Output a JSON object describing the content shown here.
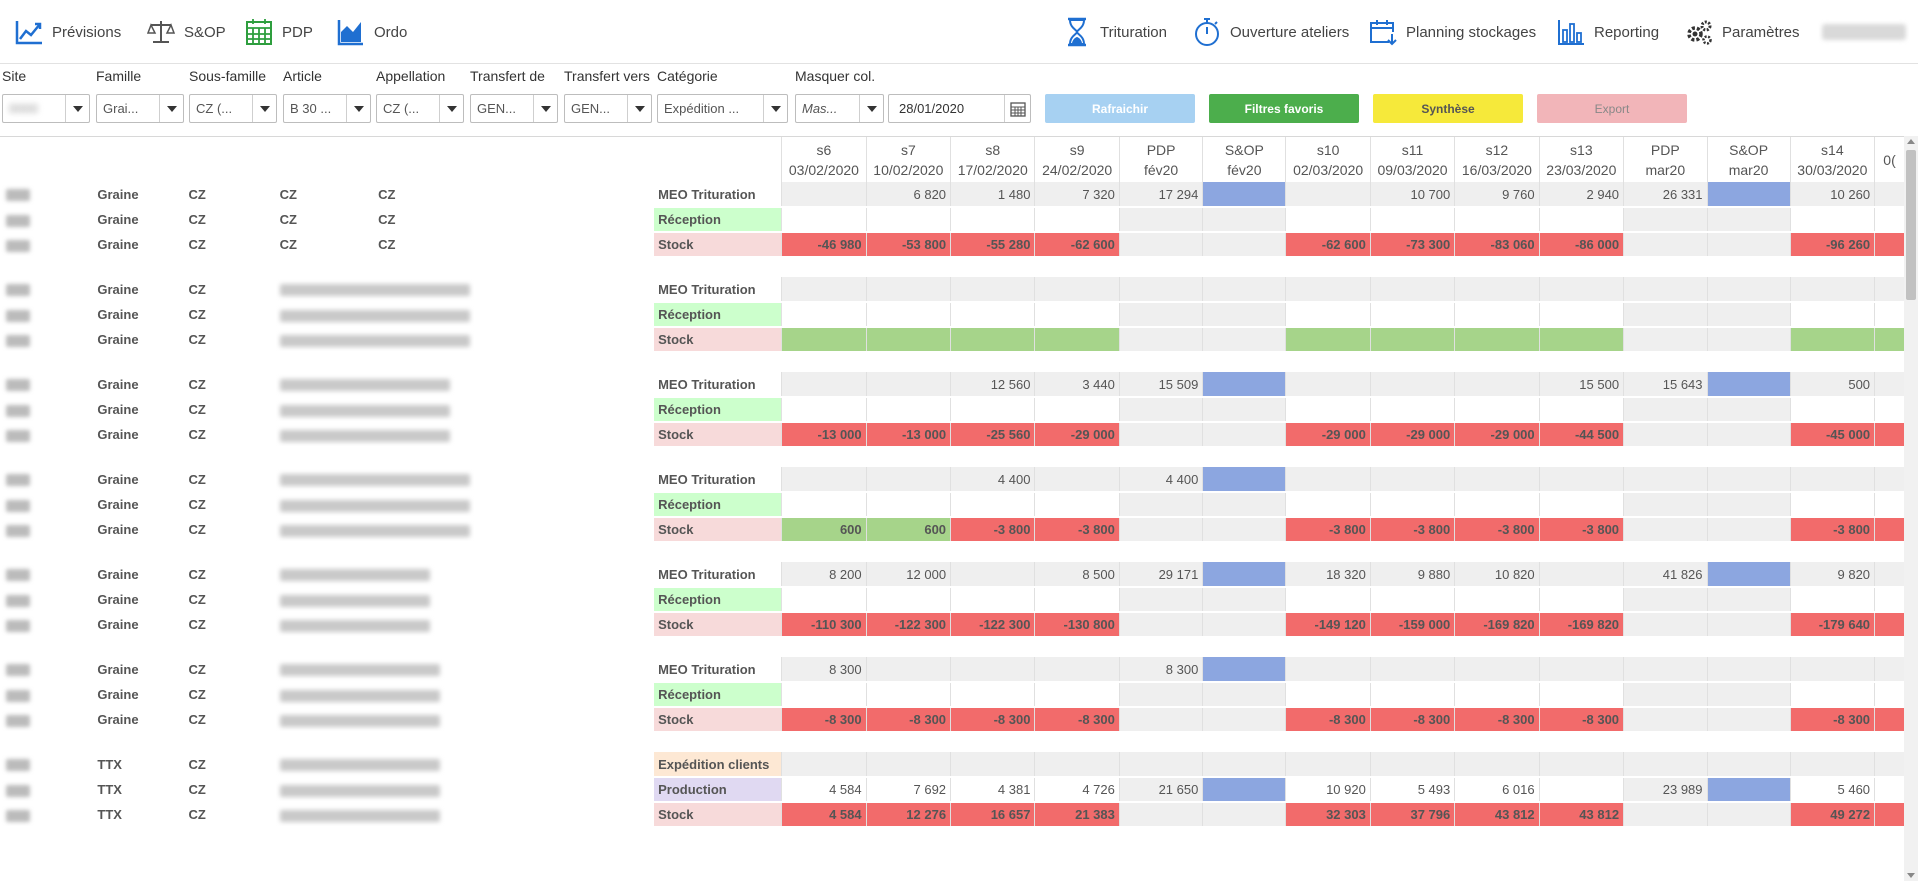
{
  "nav": {
    "left": [
      {
        "label": "Prévisions",
        "icon": "line-chart-icon"
      },
      {
        "label": "S&OP",
        "icon": "balance-scale-icon"
      },
      {
        "label": "PDP",
        "icon": "calendar-grid-icon"
      },
      {
        "label": "Ordo",
        "icon": "area-chart-icon"
      }
    ],
    "right": [
      {
        "label": "Trituration",
        "icon": "hourglass-icon"
      },
      {
        "label": "Ouverture ateliers",
        "icon": "stopwatch-icon"
      },
      {
        "label": "Planning stockages",
        "icon": "calendar-download-icon"
      },
      {
        "label": "Reporting",
        "icon": "bar-chart-icon"
      },
      {
        "label": "Paramètres",
        "icon": "gears-icon"
      }
    ]
  },
  "filters": {
    "labels": [
      "Site",
      "Famille",
      "Sous-famille",
      "Article",
      "Appellation",
      "Transfert de",
      "Transfert vers",
      "Catégorie",
      "Masquer col."
    ],
    "values": {
      "famille": "Grai...",
      "sous_famille": "CZ (...",
      "article": "B 30 ...",
      "appellation": "CZ (...",
      "transfert_de": "GEN...",
      "transfert_vers": "GEN...",
      "categorie": "Expédition ...",
      "masquer": "Mas..."
    },
    "date": "28/01/2020"
  },
  "buttons": {
    "refresh": "Rafraichir",
    "favorites": "Filtres favoris",
    "synthese": "Synthèse",
    "export": "Export"
  },
  "colors": {
    "refresh": "#a7d1f2",
    "favorites": "#4cae4c",
    "synthese": "#f6e93a",
    "export": "#f2b5b9",
    "red": "#f26b6b",
    "green": "#a6d48a",
    "blue": "#8ca6e0",
    "nav_icon": "#1f6fd1"
  },
  "columns": [
    {
      "l1": "s6",
      "l2": "03/02/2020"
    },
    {
      "l1": "s7",
      "l2": "10/02/2020"
    },
    {
      "l1": "s8",
      "l2": "17/02/2020"
    },
    {
      "l1": "s9",
      "l2": "24/02/2020"
    },
    {
      "l1": "PDP",
      "l2": "fév20"
    },
    {
      "l1": "S&OP",
      "l2": "fév20"
    },
    {
      "l1": "s10",
      "l2": "02/03/2020"
    },
    {
      "l1": "s11",
      "l2": "09/03/2020"
    },
    {
      "l1": "s12",
      "l2": "16/03/2020"
    },
    {
      "l1": "s13",
      "l2": "23/03/2020"
    },
    {
      "l1": "PDP",
      "l2": "mar20"
    },
    {
      "l1": "S&OP",
      "l2": "mar20"
    },
    {
      "l1": "s14",
      "l2": "30/03/2020"
    },
    {
      "l1": "",
      "l2": "0("
    }
  ],
  "groups": [
    {
      "famille": "Graine",
      "sous_famille": "CZ",
      "article": "CZ",
      "appellation": "CZ",
      "blur_article": false,
      "rows": [
        {
          "cat": "MEO Trituration",
          "kind": "meo",
          "vals": [
            "",
            "6 820",
            "1 480",
            "7 320",
            "17 294",
            "",
            "",
            "10 700",
            "9 760",
            "2 940",
            "26 331",
            "",
            "10 260",
            ""
          ],
          "cls": [
            "g",
            "g",
            "g",
            "g",
            "g",
            "blu",
            "g",
            "g",
            "g",
            "g",
            "g",
            "blu",
            "g",
            "g"
          ]
        },
        {
          "cat": "Réception",
          "kind": "rec",
          "vals": [
            "",
            "",
            "",
            "",
            "",
            "",
            "",
            "",
            "",
            "",
            "",
            "",
            "",
            ""
          ],
          "cls": [
            "w",
            "w",
            "w",
            "w",
            "g",
            "g",
            "w",
            "w",
            "w",
            "w",
            "g",
            "g",
            "w",
            "w"
          ]
        },
        {
          "cat": "Stock",
          "kind": "stk",
          "vals": [
            "-46 980",
            "-53 800",
            "-55 280",
            "-62 600",
            "",
            "",
            "-62 600",
            "-73 300",
            "-83 060",
            "-86 000",
            "",
            "",
            "-96 260",
            ""
          ],
          "cls": [
            "red",
            "red",
            "red",
            "red",
            "g",
            "g",
            "red",
            "red",
            "red",
            "red",
            "g",
            "g",
            "red",
            "red"
          ]
        }
      ]
    },
    {
      "famille": "Graine",
      "sous_famille": "CZ",
      "article": "",
      "appellation": "",
      "blur_article": true,
      "blur_w": 190,
      "rows": [
        {
          "cat": "MEO Trituration",
          "kind": "meo",
          "vals": [
            "",
            "",
            "",
            "",
            "",
            "",
            "",
            "",
            "",
            "",
            "",
            "",
            "",
            ""
          ],
          "cls": [
            "g",
            "g",
            "g",
            "g",
            "g",
            "g",
            "g",
            "g",
            "g",
            "g",
            "g",
            "g",
            "g",
            "g"
          ]
        },
        {
          "cat": "Réception",
          "kind": "rec",
          "vals": [
            "",
            "",
            "",
            "",
            "",
            "",
            "",
            "",
            "",
            "",
            "",
            "",
            "",
            ""
          ],
          "cls": [
            "w",
            "w",
            "w",
            "w",
            "g",
            "g",
            "w",
            "w",
            "w",
            "w",
            "g",
            "g",
            "w",
            "w"
          ]
        },
        {
          "cat": "Stock",
          "kind": "stk",
          "vals": [
            "",
            "",
            "",
            "",
            "",
            "",
            "",
            "",
            "",
            "",
            "",
            "",
            "",
            ""
          ],
          "cls": [
            "grn",
            "grn",
            "grn",
            "grn",
            "g",
            "g",
            "grn",
            "grn",
            "grn",
            "grn",
            "g",
            "g",
            "grn",
            "grn"
          ]
        }
      ]
    },
    {
      "famille": "Graine",
      "sous_famille": "CZ",
      "article": "",
      "appellation": "",
      "blur_article": true,
      "blur_w": 170,
      "rows": [
        {
          "cat": "MEO Trituration",
          "kind": "meo",
          "vals": [
            "",
            "",
            "12 560",
            "3 440",
            "15 509",
            "",
            "",
            "",
            "",
            "15 500",
            "15 643",
            "",
            "500",
            ""
          ],
          "cls": [
            "g",
            "g",
            "g",
            "g",
            "g",
            "blu",
            "g",
            "g",
            "g",
            "g",
            "g",
            "blu",
            "g",
            "g"
          ]
        },
        {
          "cat": "Réception",
          "kind": "rec",
          "vals": [
            "",
            "",
            "",
            "",
            "",
            "",
            "",
            "",
            "",
            "",
            "",
            "",
            "",
            ""
          ],
          "cls": [
            "w",
            "w",
            "w",
            "w",
            "g",
            "g",
            "w",
            "w",
            "w",
            "w",
            "g",
            "g",
            "w",
            "w"
          ]
        },
        {
          "cat": "Stock",
          "kind": "stk",
          "vals": [
            "-13 000",
            "-13 000",
            "-25 560",
            "-29 000",
            "",
            "",
            "-29 000",
            "-29 000",
            "-29 000",
            "-44 500",
            "",
            "",
            "-45 000",
            ""
          ],
          "cls": [
            "red",
            "red",
            "red",
            "red",
            "g",
            "g",
            "red",
            "red",
            "red",
            "red",
            "g",
            "g",
            "red",
            "red"
          ]
        }
      ]
    },
    {
      "famille": "Graine",
      "sous_famille": "CZ",
      "article": "",
      "appellation": "",
      "blur_article": true,
      "blur_w": 190,
      "rows": [
        {
          "cat": "MEO Trituration",
          "kind": "meo",
          "vals": [
            "",
            "",
            "4 400",
            "",
            "4 400",
            "",
            "",
            "",
            "",
            "",
            "",
            "",
            "",
            ""
          ],
          "cls": [
            "g",
            "g",
            "g",
            "g",
            "g",
            "blu",
            "g",
            "g",
            "g",
            "g",
            "g",
            "g",
            "g",
            "g"
          ]
        },
        {
          "cat": "Réception",
          "kind": "rec",
          "vals": [
            "",
            "",
            "",
            "",
            "",
            "",
            "",
            "",
            "",
            "",
            "",
            "",
            "",
            ""
          ],
          "cls": [
            "w",
            "w",
            "w",
            "w",
            "g",
            "g",
            "w",
            "w",
            "w",
            "w",
            "g",
            "g",
            "w",
            "w"
          ]
        },
        {
          "cat": "Stock",
          "kind": "stk",
          "vals": [
            "600",
            "600",
            "-3 800",
            "-3 800",
            "",
            "",
            "-3 800",
            "-3 800",
            "-3 800",
            "-3 800",
            "",
            "",
            "-3 800",
            ""
          ],
          "cls": [
            "grn",
            "grn",
            "red",
            "red",
            "g",
            "g",
            "red",
            "red",
            "red",
            "red",
            "g",
            "g",
            "red",
            "red"
          ]
        }
      ]
    },
    {
      "famille": "Graine",
      "sous_famille": "CZ",
      "article": "",
      "appellation": "",
      "blur_article": true,
      "blur_w": 150,
      "rows": [
        {
          "cat": "MEO Trituration",
          "kind": "meo",
          "vals": [
            "8 200",
            "12 000",
            "",
            "8 500",
            "29 171",
            "",
            "18 320",
            "9 880",
            "10 820",
            "",
            "41 826",
            "",
            "9 820",
            ""
          ],
          "cls": [
            "g",
            "g",
            "g",
            "g",
            "g",
            "blu",
            "g",
            "g",
            "g",
            "g",
            "g",
            "blu",
            "g",
            "g"
          ]
        },
        {
          "cat": "Réception",
          "kind": "rec",
          "vals": [
            "",
            "",
            "",
            "",
            "",
            "",
            "",
            "",
            "",
            "",
            "",
            "",
            "",
            ""
          ],
          "cls": [
            "w",
            "w",
            "w",
            "w",
            "g",
            "g",
            "w",
            "w",
            "w",
            "w",
            "g",
            "g",
            "w",
            "w"
          ]
        },
        {
          "cat": "Stock",
          "kind": "stk",
          "vals": [
            "-110 300",
            "-122 300",
            "-122 300",
            "-130 800",
            "",
            "",
            "-149 120",
            "-159 000",
            "-169 820",
            "-169 820",
            "",
            "",
            "-179 640",
            ""
          ],
          "cls": [
            "red",
            "red",
            "red",
            "red",
            "g",
            "g",
            "red",
            "red",
            "red",
            "red",
            "g",
            "g",
            "red",
            "red"
          ]
        }
      ]
    },
    {
      "famille": "Graine",
      "sous_famille": "CZ",
      "article": "",
      "appellation": "",
      "blur_article": true,
      "blur_w": 160,
      "rows": [
        {
          "cat": "MEO Trituration",
          "kind": "meo",
          "vals": [
            "8 300",
            "",
            "",
            "",
            "8 300",
            "",
            "",
            "",
            "",
            "",
            "",
            "",
            "",
            ""
          ],
          "cls": [
            "g",
            "g",
            "g",
            "g",
            "g",
            "blu",
            "g",
            "g",
            "g",
            "g",
            "g",
            "g",
            "g",
            "g"
          ]
        },
        {
          "cat": "Réception",
          "kind": "rec",
          "vals": [
            "",
            "",
            "",
            "",
            "",
            "",
            "",
            "",
            "",
            "",
            "",
            "",
            "",
            ""
          ],
          "cls": [
            "w",
            "w",
            "w",
            "w",
            "g",
            "g",
            "w",
            "w",
            "w",
            "w",
            "g",
            "g",
            "w",
            "w"
          ]
        },
        {
          "cat": "Stock",
          "kind": "stk",
          "vals": [
            "-8 300",
            "-8 300",
            "-8 300",
            "-8 300",
            "",
            "",
            "-8 300",
            "-8 300",
            "-8 300",
            "-8 300",
            "",
            "",
            "-8 300",
            ""
          ],
          "cls": [
            "red",
            "red",
            "red",
            "red",
            "g",
            "g",
            "red",
            "red",
            "red",
            "red",
            "g",
            "g",
            "red",
            "red"
          ]
        }
      ]
    },
    {
      "famille": "TTX",
      "sous_famille": "CZ",
      "article": "",
      "appellation": "",
      "blur_article": true,
      "blur_w": 160,
      "rows": [
        {
          "cat": "Expédition clients",
          "kind": "exp",
          "vals": [
            "",
            "",
            "",
            "",
            "",
            "",
            "",
            "",
            "",
            "",
            "",
            "",
            "",
            ""
          ],
          "cls": [
            "g",
            "g",
            "g",
            "g",
            "g",
            "g",
            "g",
            "g",
            "g",
            "g",
            "g",
            "g",
            "g",
            "g"
          ]
        },
        {
          "cat": "Production",
          "kind": "prd",
          "vals": [
            "4 584",
            "7 692",
            "4 381",
            "4 726",
            "21 650",
            "",
            "10 920",
            "5 493",
            "6 016",
            "",
            "23 989",
            "",
            "5 460",
            ""
          ],
          "cls": [
            "w",
            "w",
            "w",
            "w",
            "g",
            "blu",
            "w",
            "w",
            "w",
            "w",
            "g",
            "blu",
            "w",
            "w"
          ]
        },
        {
          "cat": "Stock",
          "kind": "stk",
          "vals": [
            "4 584",
            "12 276",
            "16 657",
            "21 383",
            "",
            "",
            "32 303",
            "37 796",
            "43 812",
            "43 812",
            "",
            "",
            "49 272",
            ""
          ],
          "cls": [
            "red",
            "red",
            "red",
            "red",
            "g",
            "g",
            "red",
            "red",
            "red",
            "red",
            "g",
            "g",
            "red",
            "red"
          ]
        }
      ]
    }
  ]
}
